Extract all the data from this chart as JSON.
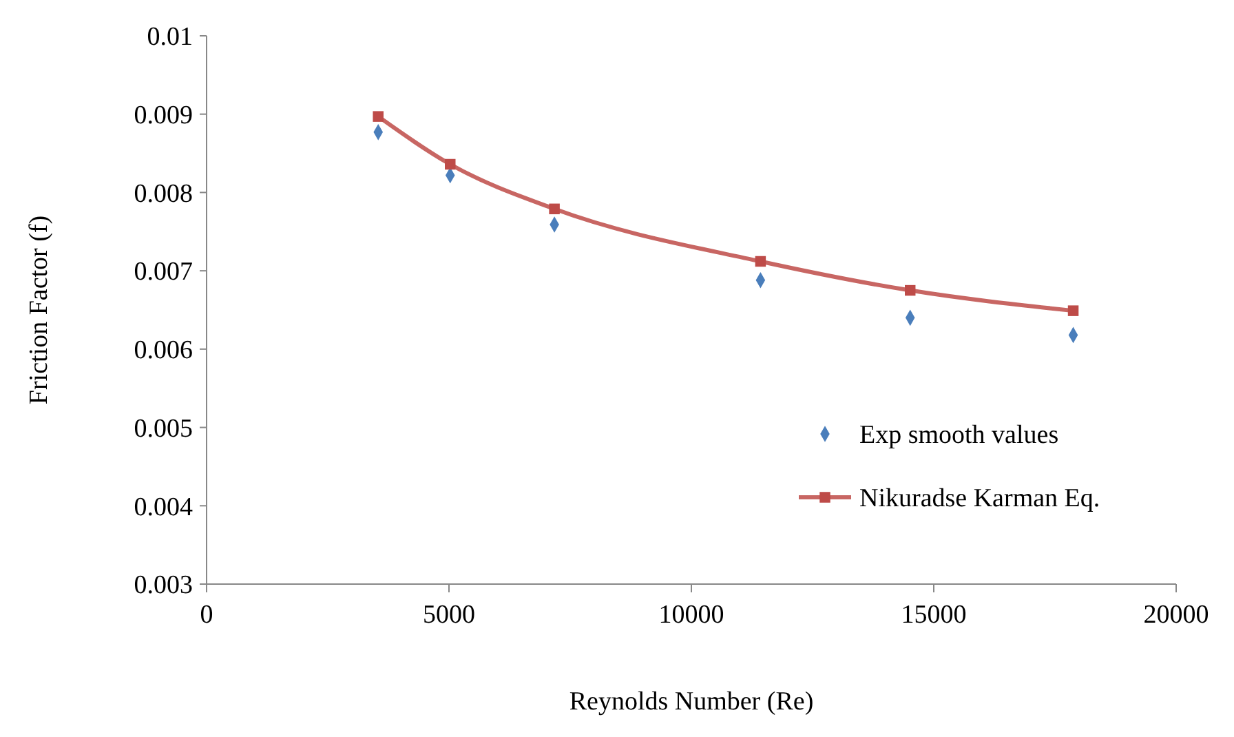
{
  "chart_data": {
    "type": "scatter",
    "xlabel": "Reynolds Number (Re)",
    "ylabel": "Friction Factor (f)",
    "x": [
      3540,
      5025,
      7175,
      11426,
      14513,
      17877
    ],
    "series": [
      {
        "name": "Exp smooth values",
        "color": "#4a7ebb",
        "marker": "diamond",
        "values": [
          0.00877,
          0.00822,
          0.00759,
          0.00688,
          0.0064,
          0.00618
        ]
      },
      {
        "name": "Nikuradse Karman Eq.",
        "type": "line",
        "color": "#be4b48",
        "marker": "square",
        "values": [
          0.00897,
          0.00836,
          0.00779,
          0.00712,
          0.00675,
          0.00649
        ]
      }
    ],
    "xlim": [
      0,
      20000
    ],
    "xticks": [
      0,
      5000,
      10000,
      15000,
      20000
    ],
    "ylim": [
      0.003,
      0.01
    ],
    "yticks": [
      0.003,
      0.004,
      0.005,
      0.006,
      0.007,
      0.008,
      0.009,
      0.01
    ],
    "grid": false,
    "legend": "right"
  }
}
